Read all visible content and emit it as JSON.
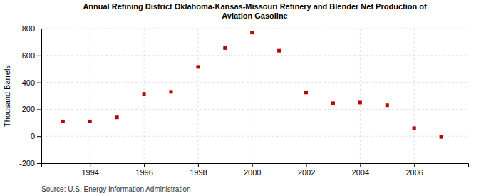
{
  "chart_data": {
    "type": "scatter",
    "title": "Annual Refining District Oklahoma-Kansas-Missouri Refinery and Blender Net Production of\nAviation Gasoline",
    "ylabel": "Thousand Barrels",
    "annotations": [
      "Source: U.S. Energy Information Administration"
    ],
    "x": [
      1993,
      1994,
      1995,
      1996,
      1997,
      1998,
      1999,
      2000,
      2001,
      2002,
      2003,
      2004,
      2005,
      2006,
      2007
    ],
    "values": [
      110,
      110,
      140,
      315,
      330,
      515,
      655,
      770,
      635,
      325,
      245,
      250,
      230,
      60,
      -5
    ],
    "color": "#bb0000",
    "marker": "square",
    "xlim": [
      1992.2,
      2008.0
    ],
    "xticks": [
      1994,
      1996,
      1998,
      2000,
      2002,
      2004,
      2006
    ],
    "ylim": [
      -200,
      800
    ],
    "yticks": [
      -200,
      0,
      200,
      400,
      600,
      800
    ],
    "grid": true
  }
}
